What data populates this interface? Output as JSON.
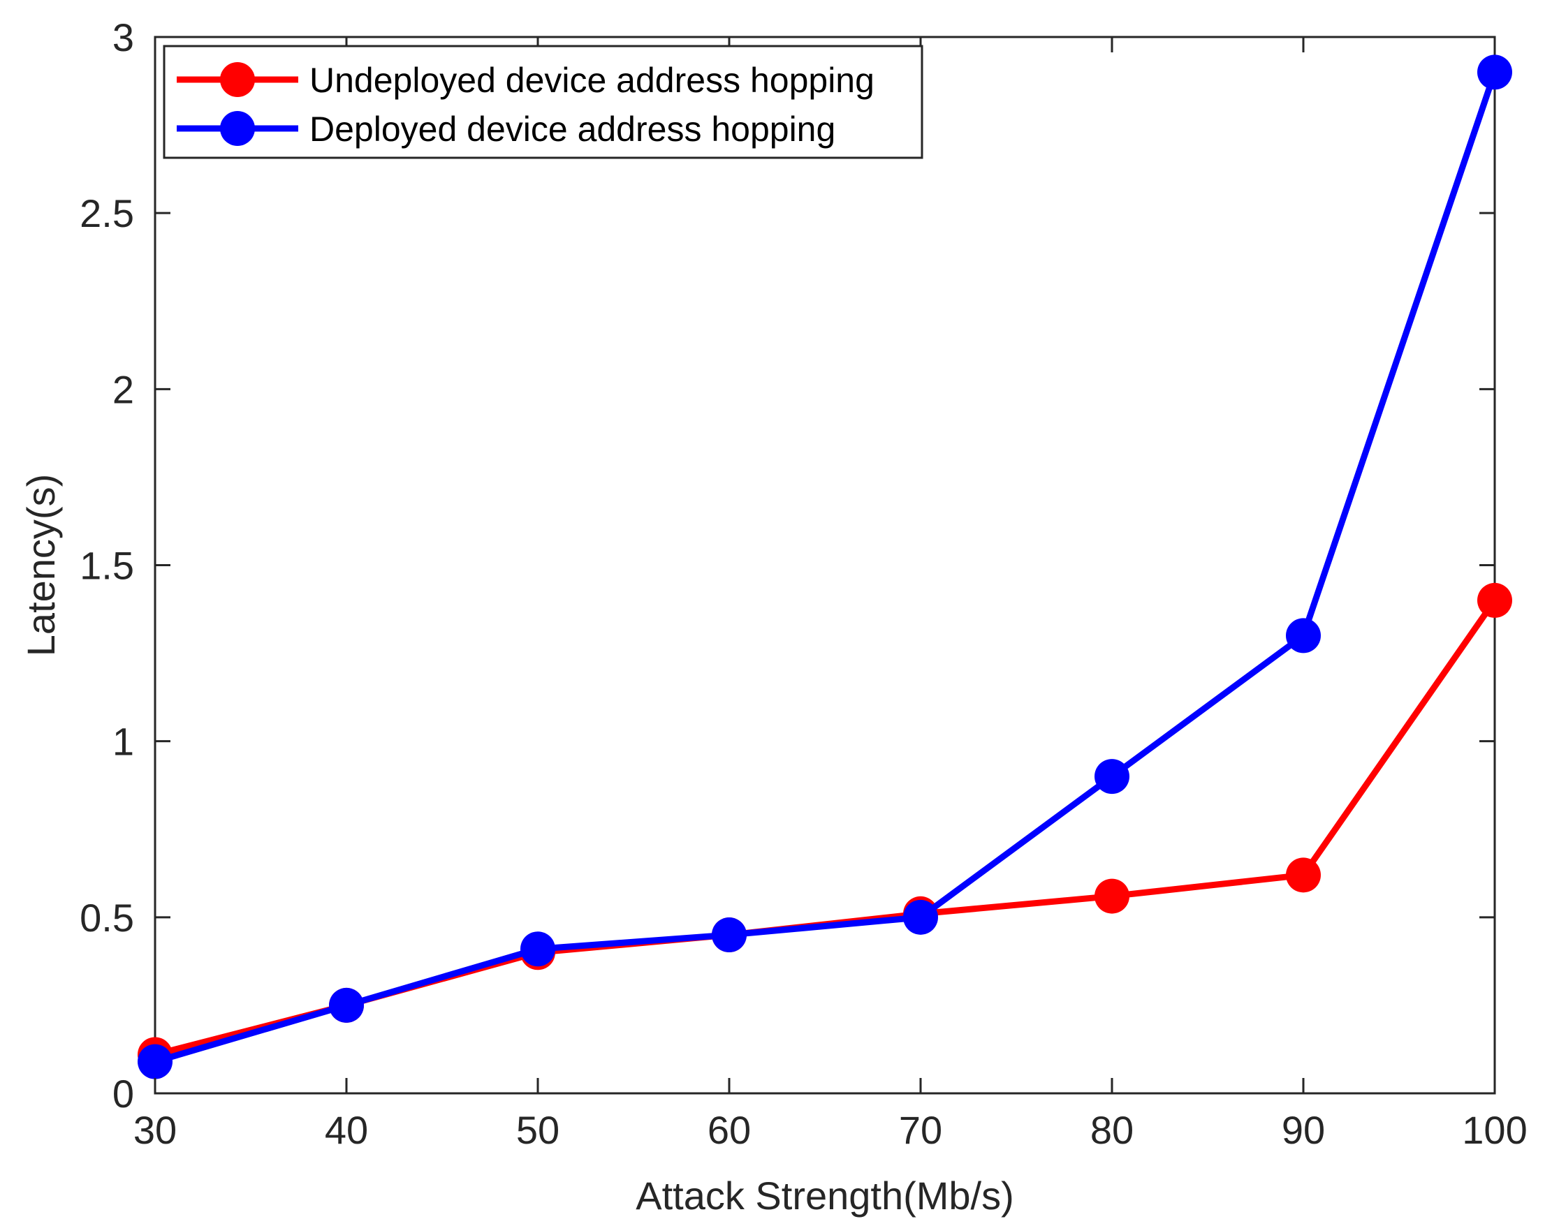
{
  "chart_data": {
    "type": "line",
    "title": "",
    "xlabel": "Attack Strength(Mb/s)",
    "ylabel": "Latency(s)",
    "x": [
      30,
      40,
      50,
      60,
      70,
      80,
      90,
      100
    ],
    "xlim": [
      30,
      100
    ],
    "ylim": [
      0,
      3
    ],
    "xticks": [
      "30",
      "40",
      "50",
      "60",
      "70",
      "80",
      "90",
      "100"
    ],
    "yticks": [
      "0",
      "0.5",
      "1",
      "1.5",
      "2",
      "2.5",
      "3"
    ],
    "grid": false,
    "legend_position": "top-left",
    "series": [
      {
        "name": "Undeployed device address hopping",
        "color": "#ff0000",
        "values": [
          0.11,
          0.25,
          0.4,
          0.45,
          0.51,
          0.56,
          0.62,
          1.4
        ]
      },
      {
        "name": "Deployed device address hopping",
        "color": "#0000ff",
        "values": [
          0.09,
          0.25,
          0.41,
          0.45,
          0.5,
          0.9,
          1.3,
          2.9
        ]
      }
    ]
  }
}
